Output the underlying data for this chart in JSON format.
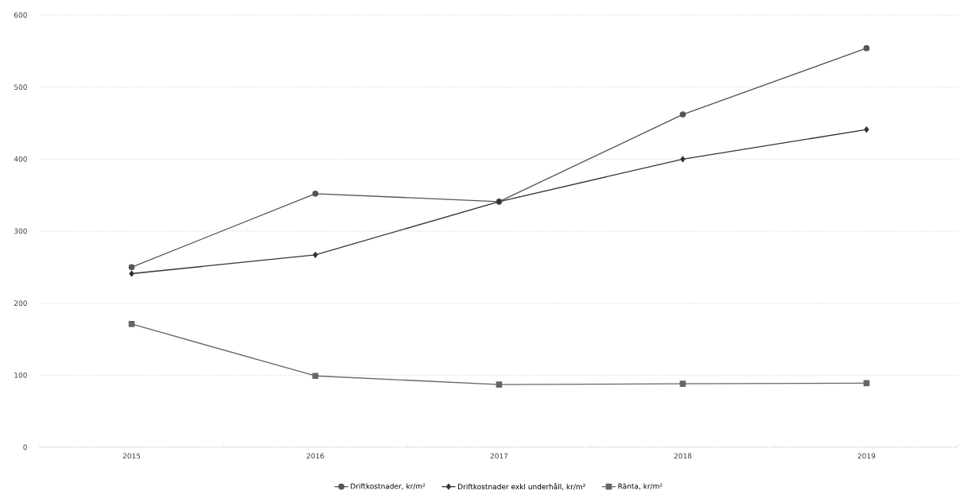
{
  "chart_data": {
    "type": "line",
    "categories": [
      "2015",
      "2016",
      "2017",
      "2018",
      "2019"
    ],
    "series": [
      {
        "name": "Driftkostnader, kr/m²",
        "color": "#555555",
        "marker": "circle",
        "values": [
          250,
          352,
          341,
          462,
          554
        ]
      },
      {
        "name": "Driftkostnader exkl underhåll, kr/m²",
        "color": "#333333",
        "marker": "diamond",
        "values": [
          241,
          267,
          341,
          400,
          441
        ]
      },
      {
        "name": "Ränta, kr/m²",
        "color": "#666666",
        "marker": "square",
        "values": [
          171,
          99,
          87,
          88,
          89
        ]
      }
    ],
    "ylim": [
      0,
      600
    ],
    "yticks": [
      0,
      100,
      200,
      300,
      400,
      500,
      600
    ],
    "grid": "y",
    "legend": "bottom",
    "line_style": "solid"
  }
}
